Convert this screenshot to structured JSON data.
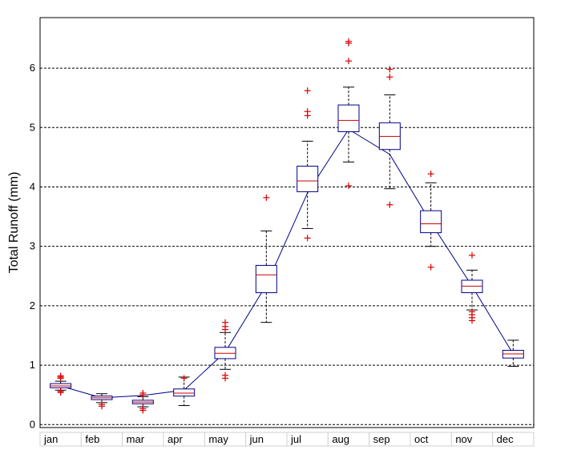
{
  "chart_data": {
    "type": "box",
    "ylabel": "Total Runoff (mm)",
    "xlabel": "",
    "title": "",
    "ylim": [
      -0.05,
      6.85
    ],
    "yticks": [
      0,
      1,
      2,
      3,
      4,
      5,
      6
    ],
    "grid": "horizontal dashed",
    "categories": [
      "jan",
      "feb",
      "mar",
      "apr",
      "may",
      "jun",
      "jul",
      "aug",
      "sep",
      "oct",
      "nov",
      "dec"
    ],
    "boxes": [
      {
        "q1": 0.62,
        "median": 0.65,
        "q3": 0.69,
        "whisker_low": 0.58,
        "whisker_high": 0.73,
        "outliers": [
          0.54,
          0.56,
          0.78,
          0.8,
          0.82
        ]
      },
      {
        "q1": 0.42,
        "median": 0.45,
        "q3": 0.48,
        "whisker_low": 0.37,
        "whisker_high": 0.52,
        "outliers": [
          0.31,
          0.34
        ]
      },
      {
        "q1": 0.35,
        "median": 0.38,
        "q3": 0.41,
        "whisker_low": 0.3,
        "whisker_high": 0.47,
        "outliers": [
          0.24,
          0.27,
          0.5,
          0.53
        ]
      },
      {
        "q1": 0.48,
        "median": 0.53,
        "q3": 0.6,
        "whisker_low": 0.32,
        "whisker_high": 0.8,
        "outliers": [
          0.78
        ]
      },
      {
        "q1": 1.11,
        "median": 1.2,
        "q3": 1.3,
        "whisker_low": 0.93,
        "whisker_high": 1.55,
        "outliers": [
          0.78,
          0.83,
          1.6,
          1.65,
          1.72
        ]
      },
      {
        "q1": 2.22,
        "median": 2.52,
        "q3": 2.68,
        "whisker_low": 1.72,
        "whisker_high": 3.26,
        "outliers": [
          3.82
        ]
      },
      {
        "q1": 3.92,
        "median": 4.1,
        "q3": 4.35,
        "whisker_low": 3.3,
        "whisker_high": 4.77,
        "outliers": [
          3.14,
          5.2,
          5.27,
          5.62
        ]
      },
      {
        "q1": 4.93,
        "median": 5.12,
        "q3": 5.38,
        "whisker_low": 4.42,
        "whisker_high": 5.68,
        "outliers": [
          4.02,
          6.12,
          6.42,
          6.45
        ]
      },
      {
        "q1": 4.63,
        "median": 4.85,
        "q3": 5.08,
        "whisker_low": 3.97,
        "whisker_high": 5.55,
        "outliers": [
          3.7,
          5.85,
          5.98
        ]
      },
      {
        "q1": 3.23,
        "median": 3.38,
        "q3": 3.6,
        "whisker_low": 3.0,
        "whisker_high": 4.07,
        "outliers": [
          2.65,
          4.22
        ]
      },
      {
        "q1": 2.22,
        "median": 2.33,
        "q3": 2.43,
        "whisker_low": 1.93,
        "whisker_high": 2.6,
        "outliers": [
          1.75,
          1.8,
          1.85,
          1.9,
          2.85
        ]
      },
      {
        "q1": 1.12,
        "median": 1.19,
        "q3": 1.25,
        "whisker_low": 0.98,
        "whisker_high": 1.42,
        "outliers": []
      }
    ],
    "mean_line": [
      0.65,
      0.45,
      0.49,
      0.58,
      1.22,
      2.35,
      3.9,
      4.97,
      4.55,
      3.4,
      2.33,
      1.19
    ],
    "colors": {
      "box": "#00008B",
      "median": "#CC0000",
      "outlier": "#DD0000",
      "whisker": "#000000",
      "mean_line": "#00008B",
      "grid": "#000000"
    }
  }
}
